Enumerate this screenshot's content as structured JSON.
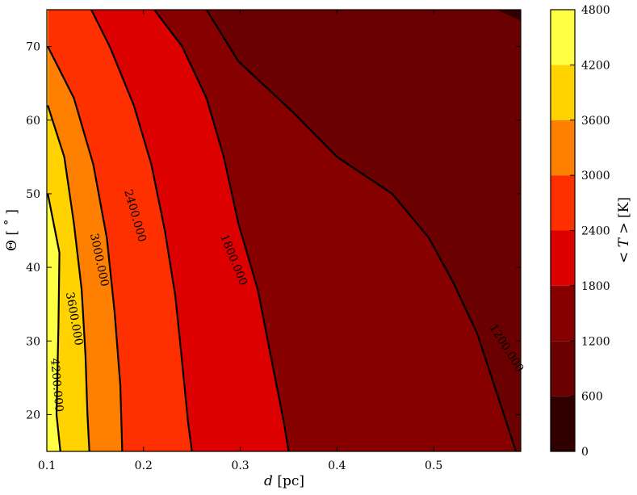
{
  "chart_data": {
    "type": "filled-contour",
    "xlabel_italic": "d",
    "xlabel_unit": "[pc]",
    "ylabel_symbol": "Θ",
    "ylabel_unit": "[ ˚ ]",
    "xlim": [
      0.1,
      0.59
    ],
    "ylim": [
      15,
      75
    ],
    "xticks": [
      0.1,
      0.2,
      0.3,
      0.4,
      0.5
    ],
    "xtick_labels": [
      "0.1",
      "0.2",
      "0.3",
      "0.4",
      "0.5"
    ],
    "yticks": [
      20,
      30,
      40,
      50,
      60,
      70
    ],
    "ytick_labels": [
      "20",
      "30",
      "40",
      "50",
      "60",
      "70"
    ],
    "colorbar": {
      "label_symbol": "< T >",
      "label_unit": "[K]",
      "range": [
        0,
        4800
      ],
      "ticks": [
        0,
        600,
        1200,
        1800,
        2400,
        3000,
        3600,
        4200,
        4800
      ],
      "tick_labels": [
        "0",
        "600",
        "1200",
        "1800",
        "2400",
        "3000",
        "3600",
        "4200",
        "4800"
      ],
      "colors": [
        "#300000",
        "#6b0000",
        "#870000",
        "#dc0000",
        "#ff3000",
        "#ff8000",
        "#ffd200",
        "#ffff44",
        "#ffffc8"
      ]
    },
    "contour_lines": [
      {
        "level": 4200,
        "label": "4200.000",
        "points": [
          [
            0.101,
            50
          ],
          [
            0.113,
            42
          ],
          [
            0.112,
            32
          ],
          [
            0.11,
            20
          ],
          [
            0.114,
            15
          ]
        ]
      },
      {
        "level": 3600,
        "label": "3600.000",
        "points": [
          [
            0.101,
            62
          ],
          [
            0.118,
            55
          ],
          [
            0.128,
            46
          ],
          [
            0.136,
            37
          ],
          [
            0.14,
            28
          ],
          [
            0.142,
            20
          ],
          [
            0.144,
            15
          ]
        ]
      },
      {
        "level": 3000,
        "label": "3000.000",
        "points": [
          [
            0.101,
            70
          ],
          [
            0.128,
            63
          ],
          [
            0.148,
            54
          ],
          [
            0.162,
            44
          ],
          [
            0.17,
            34
          ],
          [
            0.176,
            24
          ],
          [
            0.178,
            15
          ]
        ]
      },
      {
        "level": 2400,
        "label": "2400.000",
        "points": [
          [
            0.146,
            75
          ],
          [
            0.165,
            70
          ],
          [
            0.19,
            62
          ],
          [
            0.208,
            54
          ],
          [
            0.222,
            45
          ],
          [
            0.233,
            36
          ],
          [
            0.24,
            27
          ],
          [
            0.246,
            19
          ],
          [
            0.25,
            15
          ]
        ]
      },
      {
        "level": 1800,
        "label": "1800.000",
        "points": [
          [
            0.211,
            75
          ],
          [
            0.24,
            70
          ],
          [
            0.265,
            63
          ],
          [
            0.283,
            55
          ],
          [
            0.298,
            46
          ],
          [
            0.318,
            37
          ],
          [
            0.333,
            27
          ],
          [
            0.345,
            19
          ],
          [
            0.35,
            15
          ]
        ]
      },
      {
        "level": 1200,
        "label": "1200.000",
        "points": [
          [
            0.265,
            75
          ],
          [
            0.298,
            68
          ],
          [
            0.355,
            61
          ],
          [
            0.4,
            55
          ],
          [
            0.457,
            50
          ],
          [
            0.495,
            44
          ],
          [
            0.52,
            38
          ],
          [
            0.545,
            31
          ],
          [
            0.565,
            23
          ],
          [
            0.585,
            15
          ]
        ]
      }
    ],
    "contour_labels": [
      {
        "label": "4200.000",
        "x": 0.11,
        "y": 24,
        "angle": 85
      },
      {
        "label": "3600.000",
        "x": 0.128,
        "y": 33,
        "angle": 80
      },
      {
        "label": "3000.000",
        "x": 0.154,
        "y": 41,
        "angle": 78
      },
      {
        "label": "2400.000",
        "x": 0.191,
        "y": 47,
        "angle": 74
      },
      {
        "label": "1800.000",
        "x": 0.293,
        "y": 41,
        "angle": 68
      },
      {
        "label": "1200.000",
        "x": 0.575,
        "y": 29,
        "angle": 58
      }
    ]
  }
}
